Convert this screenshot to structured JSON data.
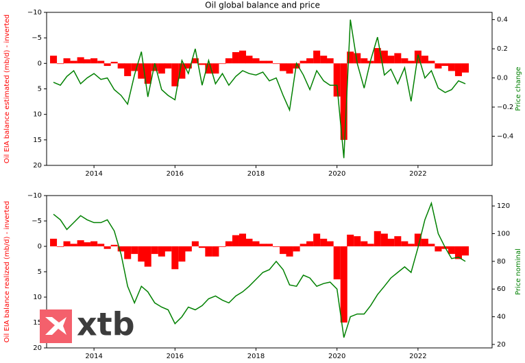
{
  "chart_data": [
    {
      "type": "combo",
      "title": "Oil global balance and price",
      "ylabel": "Oil EIA balance estimated (mb/d) - inverted",
      "y2label": "Price change",
      "x": [
        2013,
        2013.17,
        2013.33,
        2013.5,
        2013.67,
        2013.83,
        2014,
        2014.17,
        2014.33,
        2014.5,
        2014.67,
        2014.83,
        2015,
        2015.17,
        2015.33,
        2015.5,
        2015.67,
        2015.83,
        2016,
        2016.17,
        2016.33,
        2016.5,
        2016.67,
        2016.83,
        2017,
        2017.17,
        2017.33,
        2017.5,
        2017.67,
        2017.83,
        2018,
        2018.17,
        2018.33,
        2018.5,
        2018.67,
        2018.83,
        2019,
        2019.17,
        2019.33,
        2019.5,
        2019.67,
        2019.83,
        2020,
        2020.17,
        2020.33,
        2020.5,
        2020.67,
        2020.83,
        2021,
        2021.17,
        2021.33,
        2021.5,
        2021.67,
        2021.83,
        2022,
        2022.17,
        2022.33,
        2022.5,
        2022.67,
        2022.83,
        2023,
        2023.17
      ],
      "xlim": [
        2012.83,
        2023.83
      ],
      "xticks": [
        2014,
        2016,
        2018,
        2020,
        2022
      ],
      "ylim": [
        20,
        -10
      ],
      "yticks": [
        {
          "value": -10,
          "label": "−10"
        },
        {
          "value": -5,
          "label": "−5"
        },
        0,
        5,
        10,
        15,
        20
      ],
      "y2lim": [
        -0.6,
        0.45
      ],
      "y2ticks": [
        {
          "value": -0.4,
          "label": "−0.4"
        },
        {
          "value": -0.2,
          "label": "−0.2"
        },
        {
          "value": 0,
          "label": "0.0"
        },
        0.2,
        0.4
      ],
      "series": [
        {
          "kind": "bar",
          "color": "#ff0000",
          "axis": "y",
          "values": [
            -1.5,
            0,
            -1,
            -0.5,
            -1.2,
            -0.8,
            -1,
            -0.5,
            0.5,
            -0.3,
            1,
            2.5,
            1.5,
            3,
            4,
            1.5,
            2,
            1,
            4.5,
            3,
            1,
            -1,
            0.3,
            2,
            2,
            0,
            -1,
            -2.2,
            -2.5,
            -1.5,
            -1,
            -0.5,
            -0.5,
            0,
            1.5,
            2,
            1,
            -0.5,
            -1,
            -2.5,
            -1.5,
            -1,
            6.5,
            15,
            -2.3,
            -2,
            -1,
            -0.5,
            -3,
            -2.5,
            -1.5,
            -2,
            -1,
            -0.5,
            -2.5,
            -1.5,
            -0.5,
            1,
            0.5,
            1.5,
            2.5,
            1.8
          ]
        },
        {
          "kind": "line",
          "color": "#008000",
          "axis": "y2",
          "values": [
            -0.03,
            -0.05,
            0.01,
            0.05,
            -0.04,
            0,
            0.03,
            -0.01,
            0,
            -0.08,
            -0.12,
            -0.18,
            0.02,
            0.18,
            -0.13,
            0.1,
            -0.08,
            -0.12,
            -0.15,
            0.12,
            0.03,
            0.2,
            -0.05,
            0.12,
            -0.04,
            0.03,
            -0.05,
            0.01,
            0.05,
            0.03,
            0.02,
            0.04,
            -0.02,
            0,
            -0.12,
            -0.22,
            0.1,
            0.02,
            -0.08,
            0.05,
            -0.02,
            -0.05,
            -0.05,
            -0.55,
            0.4,
            0.1,
            -0.07,
            0.12,
            0.28,
            0.02,
            0.06,
            -0.04,
            0.07,
            -0.16,
            0.16,
            0,
            0.05,
            -0.07,
            -0.1,
            -0.08,
            -0.02,
            -0.04
          ]
        }
      ]
    },
    {
      "type": "combo",
      "ylabel": "Oil EIA balance realized (mb/d) - inverted",
      "y2label": "Price nominal",
      "x": [
        2013,
        2013.17,
        2013.33,
        2013.5,
        2013.67,
        2013.83,
        2014,
        2014.17,
        2014.33,
        2014.5,
        2014.67,
        2014.83,
        2015,
        2015.17,
        2015.33,
        2015.5,
        2015.67,
        2015.83,
        2016,
        2016.17,
        2016.33,
        2016.5,
        2016.67,
        2016.83,
        2017,
        2017.17,
        2017.33,
        2017.5,
        2017.67,
        2017.83,
        2018,
        2018.17,
        2018.33,
        2018.5,
        2018.67,
        2018.83,
        2019,
        2019.17,
        2019.33,
        2019.5,
        2019.67,
        2019.83,
        2020,
        2020.17,
        2020.33,
        2020.5,
        2020.67,
        2020.83,
        2021,
        2021.17,
        2021.33,
        2021.5,
        2021.67,
        2021.83,
        2022,
        2022.17,
        2022.33,
        2022.5,
        2022.67,
        2022.83,
        2023,
        2023.17
      ],
      "xlim": [
        2012.83,
        2023.83
      ],
      "xticks": [
        2014,
        2016,
        2018,
        2020,
        2022
      ],
      "ylim": [
        20,
        -10
      ],
      "yticks": [
        {
          "value": -10,
          "label": "−10"
        },
        {
          "value": -5,
          "label": "−5"
        },
        0,
        5,
        10,
        15,
        20
      ],
      "y2lim": [
        17.5,
        127.5
      ],
      "y2ticks": [
        20,
        40,
        60,
        80,
        100,
        120
      ],
      "series": [
        {
          "kind": "bar",
          "color": "#ff0000",
          "axis": "y",
          "values": [
            -1.5,
            0,
            -1,
            -0.5,
            -1.2,
            -0.8,
            -1,
            -0.5,
            0.5,
            -0.3,
            1,
            2.5,
            1.5,
            3,
            4,
            1.5,
            2,
            1,
            4.5,
            3,
            1,
            -1,
            0.3,
            2,
            2,
            0,
            -1,
            -2.2,
            -2.5,
            -1.5,
            -1,
            -0.5,
            -0.5,
            0,
            1.5,
            2,
            1,
            -0.5,
            -1,
            -2.5,
            -1.5,
            -1,
            6.5,
            15,
            -2.3,
            -2,
            -1,
            -0.5,
            -3,
            -2.5,
            -1.5,
            -2,
            -1,
            -0.5,
            -2.5,
            -1.5,
            -0.5,
            1,
            0.5,
            1.5,
            2.5,
            1.8
          ]
        },
        {
          "kind": "line",
          "color": "#008000",
          "axis": "y2",
          "values": [
            114,
            110,
            103,
            108,
            113,
            110,
            108,
            108,
            110,
            102,
            85,
            62,
            50,
            62,
            58,
            50,
            47,
            45,
            35,
            40,
            47,
            45,
            48,
            53,
            55,
            52,
            50,
            55,
            58,
            62,
            67,
            72,
            74,
            80,
            74,
            63,
            62,
            70,
            68,
            62,
            64,
            65,
            60,
            25,
            40,
            42,
            42,
            48,
            56,
            62,
            68,
            72,
            76,
            72,
            90,
            110,
            122,
            100,
            90,
            82,
            83,
            80
          ]
        }
      ],
      "watermark": "xtb"
    }
  ]
}
